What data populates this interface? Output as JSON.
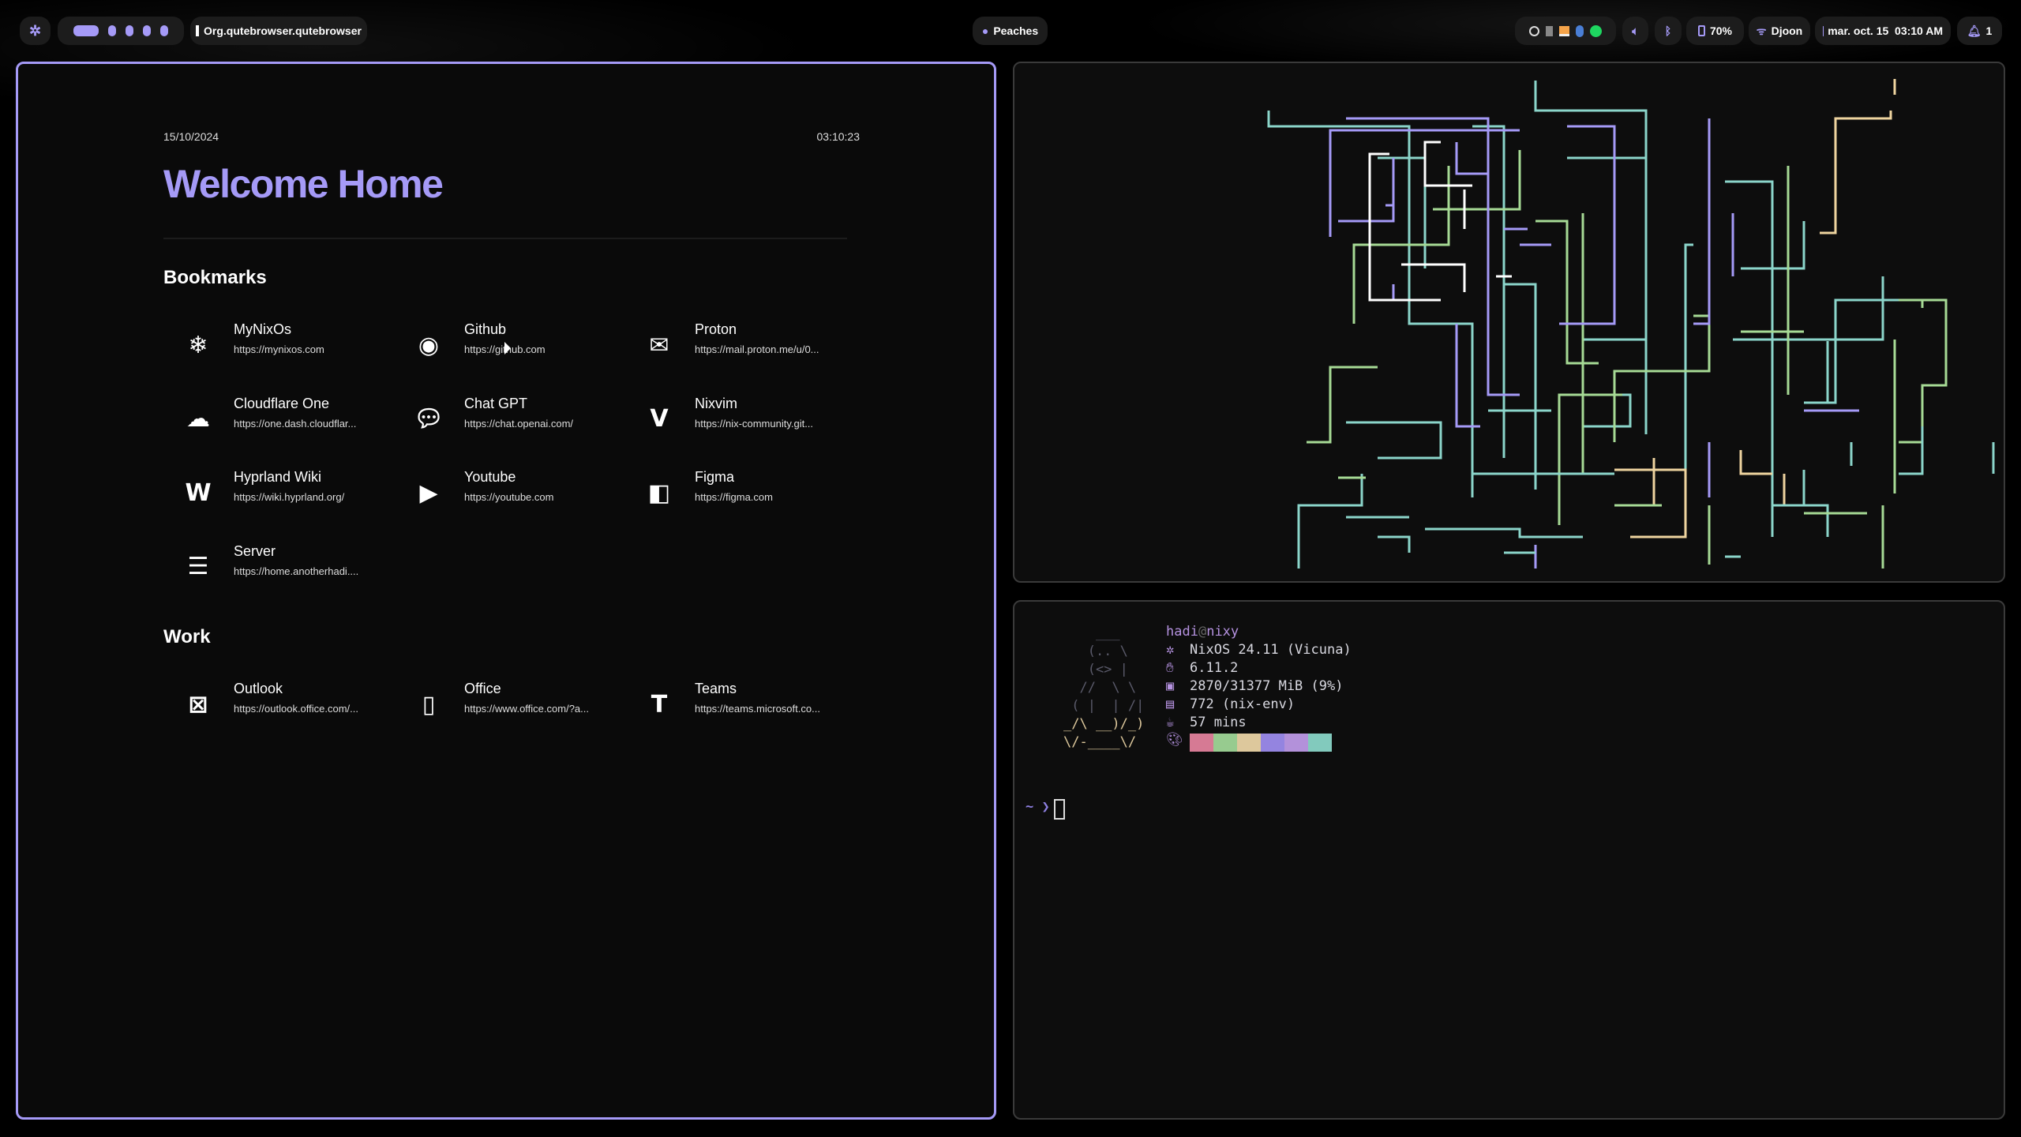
{
  "topbar": {
    "launcher_icon": "nix-gear-icon",
    "workspaces": [
      {
        "active": true
      },
      {
        "active": false
      },
      {
        "active": false
      },
      {
        "active": false
      },
      {
        "active": false
      }
    ],
    "window_title": "Org.qutebrowser.qutebrowser",
    "media": "Peaches",
    "tray_icons": [
      "disc-icon",
      "kdeconnect-icon",
      "drive-icon",
      "bluetooth-icon",
      "spotify-icon"
    ],
    "battery": "70%",
    "wifi": "Djoon",
    "datetime": "mar. oct. 15  03:10 AM",
    "notifications": "1"
  },
  "browser": {
    "date": "15/10/2024",
    "time": "03:10:23",
    "title": "Welcome Home",
    "sections": [
      {
        "heading": "Bookmarks",
        "items": [
          {
            "name": "MyNixOs",
            "url": "https://mynixos.com",
            "icon": "nixos-icon"
          },
          {
            "name": "Github",
            "url": "https://github.com",
            "icon": "github-icon"
          },
          {
            "name": "Proton",
            "url": "https://mail.proton.me/u/0...",
            "icon": "mail-icon"
          },
          {
            "name": "Cloudflare One",
            "url": "https://one.dash.cloudflar...",
            "icon": "cloud-icon"
          },
          {
            "name": "Chat GPT",
            "url": "https://chat.openai.com/",
            "icon": "chat-icon"
          },
          {
            "name": "Nixvim",
            "url": "https://nix-community.git...",
            "icon": "vim-icon"
          },
          {
            "name": "Hyprland Wiki",
            "url": "https://wiki.hyprland.org/",
            "icon": "wikipedia-icon"
          },
          {
            "name": "Youtube",
            "url": "https://youtube.com",
            "icon": "youtube-icon"
          },
          {
            "name": "Figma",
            "url": "https://figma.com",
            "icon": "figma-icon"
          },
          {
            "name": "Server",
            "url": "https://home.anotherhadi....",
            "icon": "server-icon"
          }
        ]
      },
      {
        "heading": "Work",
        "items": [
          {
            "name": "Outlook",
            "url": "https://outlook.office.com/...",
            "icon": "outlook-icon"
          },
          {
            "name": "Office",
            "url": "https://www.office.com/?a...",
            "icon": "office-icon"
          },
          {
            "name": "Teams",
            "url": "https://teams.microsoft.co...",
            "icon": "teams-icon"
          }
        ]
      }
    ]
  },
  "terminal": {
    "user": "hadi",
    "at": "@",
    "host": "nixy",
    "ascii": [
      "    ___",
      "   (.. \\",
      "   (<> |",
      "  //  \\ \\",
      " ( |  | /|",
      "_/\\ __)/_)",
      "\\/-____\\/"
    ],
    "info": [
      {
        "icon": "nixos-icon",
        "text": "NixOS 24.11 (Vicuna)"
      },
      {
        "icon": "kernel-icon",
        "text": "6.11.2"
      },
      {
        "icon": "memory-icon",
        "text": "2870/31377 MiB (9%)"
      },
      {
        "icon": "package-icon",
        "text": "772 (nix-env)"
      },
      {
        "icon": "uptime-icon",
        "text": "57 mins"
      }
    ],
    "palette": [
      "#d67a94",
      "#97cb8f",
      "#ddc89c",
      "#9484e0",
      "#b391da",
      "#82cabd"
    ],
    "prompt": "~ ❯"
  },
  "colors": {
    "accent": "#a59af7",
    "pipes": [
      "#8bd5ca",
      "#a6da95",
      "#a59af7",
      "#eed49f",
      "#ffffff"
    ]
  }
}
